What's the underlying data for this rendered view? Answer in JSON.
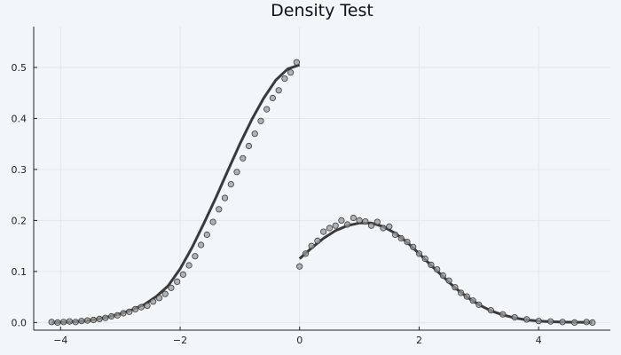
{
  "chart_data": {
    "type": "scatter",
    "title": "Density Test",
    "xlabel": "",
    "ylabel": "",
    "xlim": [
      -4.45,
      5.2
    ],
    "ylim": [
      -0.015,
      0.58
    ],
    "x_ticks": [
      -4,
      -2,
      0,
      2,
      4
    ],
    "y_ticks": [
      0.0,
      0.1,
      0.2,
      0.3,
      0.4,
      0.5
    ],
    "x_tick_labels": [
      "−4",
      "−2",
      "0",
      "2",
      "4"
    ],
    "y_tick_labels": [
      "0.0",
      "0.1",
      "0.2",
      "0.3",
      "0.4",
      "0.5"
    ],
    "grid": true,
    "legend": "none",
    "colors": {
      "points": "#9a9a9a",
      "points_stroke": "#3a3a3a",
      "line": "#3a3a3a"
    },
    "series": [
      {
        "kind": "line",
        "x": [
          -4.15,
          -4.0,
          -3.8,
          -3.6,
          -3.4,
          -3.2,
          -3.0,
          -2.8,
          -2.6,
          -2.4,
          -2.2,
          -2.0,
          -1.8,
          -1.6,
          -1.4,
          -1.2,
          -1.0,
          -0.8,
          -0.6,
          -0.4,
          -0.2,
          0.0
        ],
        "y": [
          0.0,
          0.0005,
          0.0012,
          0.003,
          0.006,
          0.011,
          0.017,
          0.025,
          0.035,
          0.051,
          0.072,
          0.105,
          0.147,
          0.195,
          0.245,
          0.298,
          0.35,
          0.398,
          0.44,
          0.475,
          0.497,
          0.505
        ]
      },
      {
        "kind": "line",
        "x": [
          0.0,
          0.2,
          0.4,
          0.6,
          0.8,
          1.0,
          1.2,
          1.4,
          1.6,
          1.8,
          2.0,
          2.2,
          2.4,
          2.6,
          2.8,
          3.0,
          3.2,
          3.4,
          3.6,
          3.8,
          4.0,
          4.2,
          4.5,
          4.9
        ],
        "y": [
          0.125,
          0.146,
          0.165,
          0.18,
          0.19,
          0.195,
          0.195,
          0.188,
          0.175,
          0.157,
          0.135,
          0.112,
          0.09,
          0.068,
          0.05,
          0.035,
          0.023,
          0.015,
          0.009,
          0.005,
          0.003,
          0.0015,
          0.0007,
          0.0002
        ]
      },
      {
        "kind": "scatter",
        "x": [
          -4.15,
          -4.05,
          -3.95,
          -3.85,
          -3.75,
          -3.65,
          -3.55,
          -3.45,
          -3.35,
          -3.25,
          -3.15,
          -3.05,
          -2.95,
          -2.85,
          -2.75,
          -2.65,
          -2.55,
          -2.45,
          -2.35,
          -2.25,
          -2.15,
          -2.05,
          -1.95,
          -1.85,
          -1.75,
          -1.65,
          -1.55,
          -1.45,
          -1.35,
          -1.25,
          -1.15,
          -1.05,
          -0.95,
          -0.85,
          -0.75,
          -0.65,
          -0.55,
          -0.45,
          -0.35,
          -0.25,
          -0.15,
          -0.05,
          0.0,
          0.1,
          0.2,
          0.3,
          0.4,
          0.5,
          0.6,
          0.7,
          0.8,
          0.9,
          1.0,
          1.1,
          1.2,
          1.3,
          1.4,
          1.5,
          1.6,
          1.7,
          1.8,
          1.9,
          2.0,
          2.1,
          2.2,
          2.3,
          2.4,
          2.5,
          2.6,
          2.7,
          2.8,
          2.9,
          3.0,
          3.2,
          3.4,
          3.6,
          3.8,
          4.0,
          4.2,
          4.4,
          4.6,
          4.8,
          4.9
        ],
        "y": [
          0.001,
          0.0,
          0.001,
          0.002,
          0.001,
          0.003,
          0.004,
          0.005,
          0.007,
          0.009,
          0.012,
          0.014,
          0.018,
          0.021,
          0.026,
          0.03,
          0.033,
          0.041,
          0.048,
          0.056,
          0.068,
          0.08,
          0.094,
          0.112,
          0.13,
          0.152,
          0.172,
          0.197,
          0.222,
          0.244,
          0.271,
          0.295,
          0.322,
          0.346,
          0.37,
          0.395,
          0.418,
          0.44,
          0.455,
          0.478,
          0.49,
          0.51,
          0.11,
          0.135,
          0.15,
          0.16,
          0.178,
          0.185,
          0.19,
          0.2,
          0.192,
          0.205,
          0.2,
          0.198,
          0.19,
          0.197,
          0.185,
          0.188,
          0.172,
          0.165,
          0.158,
          0.148,
          0.135,
          0.125,
          0.113,
          0.104,
          0.092,
          0.082,
          0.069,
          0.058,
          0.051,
          0.043,
          0.035,
          0.024,
          0.016,
          0.01,
          0.006,
          0.003,
          0.002,
          0.001,
          0.0,
          0.001,
          0.0
        ]
      }
    ]
  }
}
